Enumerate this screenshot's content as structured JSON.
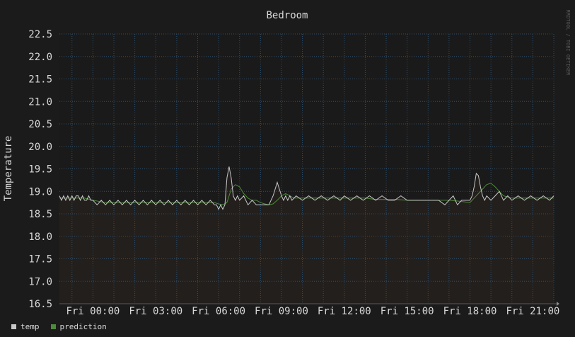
{
  "chart_data": {
    "type": "line",
    "title": "Bedroom",
    "ylabel": "Temperature",
    "xlabel": "",
    "watermark": "RRDTOOL / TOBI OETIKER",
    "ylim": [
      16.5,
      22.5
    ],
    "y_ticks": [
      "22.5",
      "22.0",
      "21.5",
      "21.0",
      "20.5",
      "20.0",
      "19.5",
      "19.0",
      "18.5",
      "18.0",
      "17.5",
      "17.0",
      "16.5"
    ],
    "x_ticks": [
      "Fri 00:00",
      "Fri 03:00",
      "Fri 06:00",
      "Fri 09:00",
      "Fri 12:00",
      "Fri 15:00",
      "Fri 18:00",
      "Fri 21:00"
    ],
    "xlim_hours": [
      -1.6,
      22.0
    ],
    "grid": true,
    "legend_position": "bottom-left",
    "series": [
      {
        "name": "temp",
        "color": "#c8c8c8",
        "fill": "#231f1c",
        "x": [
          -1.6,
          -1.5,
          -1.4,
          -1.3,
          -1.2,
          -1.1,
          -1.0,
          -0.9,
          -0.8,
          -0.7,
          -0.6,
          -0.5,
          -0.4,
          -0.3,
          -0.2,
          -0.1,
          0.0,
          0.2,
          0.4,
          0.6,
          0.8,
          1.0,
          1.2,
          1.4,
          1.6,
          1.8,
          2.0,
          2.2,
          2.4,
          2.6,
          2.8,
          3.0,
          3.2,
          3.4,
          3.6,
          3.8,
          4.0,
          4.2,
          4.4,
          4.6,
          4.8,
          5.0,
          5.2,
          5.4,
          5.6,
          5.8,
          5.9,
          6.0,
          6.1,
          6.2,
          6.3,
          6.4,
          6.5,
          6.6,
          6.7,
          6.8,
          6.9,
          7.0,
          7.2,
          7.4,
          7.6,
          7.8,
          8.0,
          8.2,
          8.4,
          8.6,
          8.8,
          9.0,
          9.1,
          9.2,
          9.3,
          9.4,
          9.5,
          9.7,
          10.0,
          10.3,
          10.6,
          10.9,
          11.2,
          11.5,
          11.8,
          12.0,
          12.3,
          12.6,
          12.9,
          13.2,
          13.5,
          13.8,
          14.1,
          14.4,
          14.7,
          15.0,
          15.5,
          16.0,
          16.5,
          16.8,
          17.0,
          17.2,
          17.4,
          17.6,
          17.8,
          18.0,
          18.1,
          18.2,
          18.3,
          18.4,
          18.5,
          18.6,
          18.7,
          18.8,
          19.0,
          19.2,
          19.4,
          19.6,
          19.8,
          20.0,
          20.3,
          20.6,
          20.9,
          21.2,
          21.5,
          21.8,
          22.0
        ],
        "y": [
          18.9,
          18.8,
          18.9,
          18.8,
          18.9,
          18.8,
          18.9,
          18.8,
          18.9,
          18.9,
          18.8,
          18.9,
          18.8,
          18.8,
          18.9,
          18.8,
          18.8,
          18.7,
          18.8,
          18.7,
          18.8,
          18.7,
          18.8,
          18.7,
          18.8,
          18.7,
          18.8,
          18.7,
          18.8,
          18.7,
          18.8,
          18.7,
          18.8,
          18.7,
          18.8,
          18.7,
          18.8,
          18.7,
          18.8,
          18.7,
          18.8,
          18.7,
          18.8,
          18.7,
          18.8,
          18.7,
          18.7,
          18.6,
          18.7,
          18.6,
          18.7,
          19.3,
          19.55,
          19.3,
          18.9,
          18.8,
          18.9,
          18.8,
          18.9,
          18.7,
          18.8,
          18.7,
          18.7,
          18.7,
          18.7,
          18.9,
          19.2,
          18.9,
          18.8,
          18.9,
          18.8,
          18.9,
          18.8,
          18.9,
          18.8,
          18.9,
          18.8,
          18.9,
          18.8,
          18.9,
          18.8,
          18.9,
          18.8,
          18.9,
          18.8,
          18.9,
          18.8,
          18.9,
          18.8,
          18.8,
          18.9,
          18.8,
          18.8,
          18.8,
          18.8,
          18.7,
          18.8,
          18.9,
          18.7,
          18.8,
          18.8,
          18.8,
          18.9,
          19.1,
          19.4,
          19.35,
          19.1,
          18.9,
          18.8,
          18.9,
          18.8,
          18.9,
          19.0,
          18.8,
          18.9,
          18.8,
          18.9,
          18.8,
          18.9,
          18.8,
          18.9,
          18.8,
          18.9
        ]
      },
      {
        "name": "prediction",
        "color": "#4f8a3a",
        "x": [
          -1.6,
          -1.0,
          -0.4,
          0.0,
          0.6,
          1.2,
          1.8,
          2.4,
          3.0,
          3.6,
          4.2,
          4.8,
          5.4,
          5.8,
          6.0,
          6.2,
          6.4,
          6.5,
          6.6,
          6.8,
          7.0,
          7.2,
          7.4,
          7.6,
          7.8,
          8.0,
          8.2,
          8.4,
          8.6,
          8.8,
          9.0,
          9.2,
          9.4,
          9.6,
          10.0,
          10.5,
          11.0,
          11.5,
          12.0,
          12.5,
          13.0,
          13.5,
          14.0,
          14.5,
          15.0,
          15.5,
          16.0,
          16.5,
          17.0,
          17.5,
          18.0,
          18.2,
          18.4,
          18.6,
          18.8,
          19.0,
          19.2,
          19.4,
          19.6,
          20.0,
          20.5,
          21.0,
          21.5,
          22.0
        ],
        "y": [
          18.85,
          18.85,
          18.85,
          18.8,
          18.75,
          18.75,
          18.75,
          18.75,
          18.75,
          18.75,
          18.75,
          18.75,
          18.75,
          18.75,
          18.72,
          18.7,
          18.75,
          18.9,
          19.05,
          19.15,
          19.1,
          18.95,
          18.85,
          18.8,
          18.8,
          18.75,
          18.72,
          18.7,
          18.72,
          18.8,
          18.9,
          18.95,
          18.9,
          18.85,
          18.85,
          18.85,
          18.85,
          18.85,
          18.85,
          18.85,
          18.85,
          18.82,
          18.82,
          18.82,
          18.8,
          18.8,
          18.8,
          18.8,
          18.8,
          18.78,
          18.75,
          18.85,
          18.95,
          19.05,
          19.15,
          19.18,
          19.1,
          19.0,
          18.9,
          18.85,
          18.85,
          18.85,
          18.85,
          18.85
        ]
      }
    ]
  }
}
